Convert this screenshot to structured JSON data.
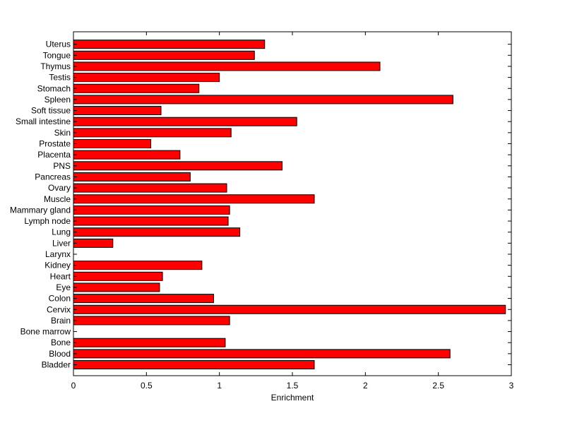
{
  "chart_data": {
    "type": "bar",
    "orientation": "horizontal",
    "title": "",
    "xlabel": "Enrichment",
    "ylabel": "",
    "xlim": [
      0,
      3
    ],
    "xticks": [
      0,
      0.5,
      1,
      1.5,
      2,
      2.5,
      3
    ],
    "xtick_labels": [
      "0",
      "0.5",
      "1",
      "1.5",
      "2",
      "2.5",
      "3"
    ],
    "grid": false,
    "legend": "none",
    "bar_color": "#ff0000",
    "bar_edge_color": "#000000",
    "categories": [
      "Bladder",
      "Blood",
      "Bone",
      "Bone marrow",
      "Brain",
      "Cervix",
      "Colon",
      "Eye",
      "Heart",
      "Kidney",
      "Larynx",
      "Liver",
      "Lung",
      "Lymph node",
      "Mammary gland",
      "Muscle",
      "Ovary",
      "Pancreas",
      "PNS",
      "Placenta",
      "Prostate",
      "Skin",
      "Small intestine",
      "Soft tissue",
      "Spleen",
      "Stomach",
      "Testis",
      "Thymus",
      "Tongue",
      "Uterus"
    ],
    "values": [
      1.65,
      2.58,
      1.04,
      0,
      1.07,
      2.96,
      0.96,
      0.59,
      0.61,
      0.88,
      0,
      0.27,
      1.14,
      1.06,
      1.07,
      1.65,
      1.05,
      0.8,
      1.43,
      0.73,
      0.53,
      1.08,
      1.53,
      0.6,
      2.6,
      0.86,
      1.0,
      2.1,
      1.24,
      1.31
    ]
  }
}
